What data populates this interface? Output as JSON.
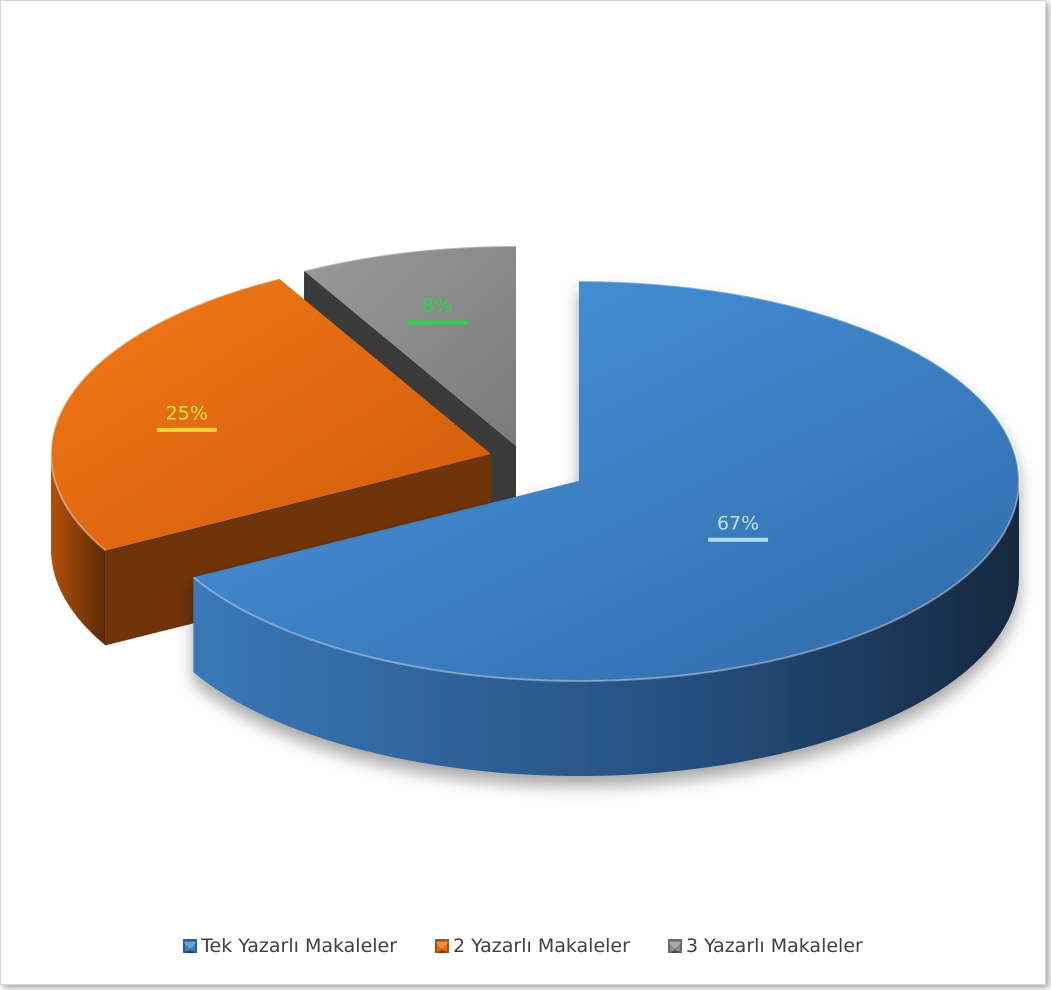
{
  "chart_data": {
    "type": "pie",
    "style": "3d-exploded",
    "slices": [
      {
        "label": "Tek Yazarlı Makaleler",
        "value": 67,
        "data_label": "67%",
        "color": "#3b7fc4",
        "label_color": "#bfe3ff"
      },
      {
        "label": "2 Yazarlı Makaleler",
        "value": 25,
        "data_label": "25%",
        "color": "#e8690f",
        "label_color": "#ffe23a"
      },
      {
        "label": "3 Yazarlı Makaleler",
        "value": 8,
        "data_label": "8%",
        "color": "#8c8c8c",
        "label_color": "#27d84a"
      }
    ],
    "legend_position": "bottom"
  },
  "legend": {
    "items": [
      {
        "label": "Tek Yazarlı Makaleler",
        "color": "#3b7fc4"
      },
      {
        "label": "2 Yazarlı Makaleler",
        "color": "#e8690f"
      },
      {
        "label": "3 Yazarlı Makaleler",
        "color": "#8c8c8c"
      }
    ]
  }
}
